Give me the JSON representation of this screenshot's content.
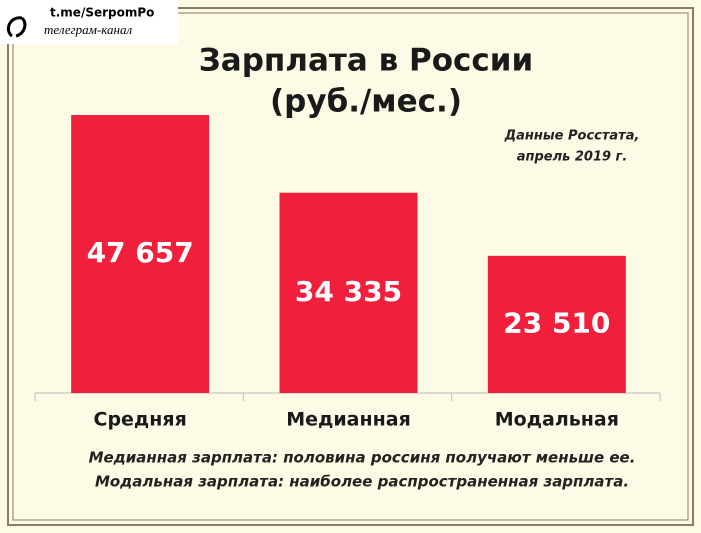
{
  "watermark": {
    "link": "t.me/SerpomPo",
    "caption": "телеграм-канал"
  },
  "chart_data": {
    "type": "bar",
    "title": "Зарплата в России",
    "subtitle": "(руб./мес.)",
    "annotation": [
      "Данные Росстата,",
      "апрель 2019 г."
    ],
    "categories": [
      "Средняя",
      "Медианная",
      "Модальная"
    ],
    "values": [
      47657,
      34335,
      23510
    ],
    "value_labels": [
      "47 657",
      "34 335",
      "23 510"
    ],
    "color": "#f0203c",
    "notes": [
      "Медианная зарплата: половина россиня получают меньше ее.",
      "Модальная зарплата: наиболее распространенная зарплата."
    ]
  }
}
